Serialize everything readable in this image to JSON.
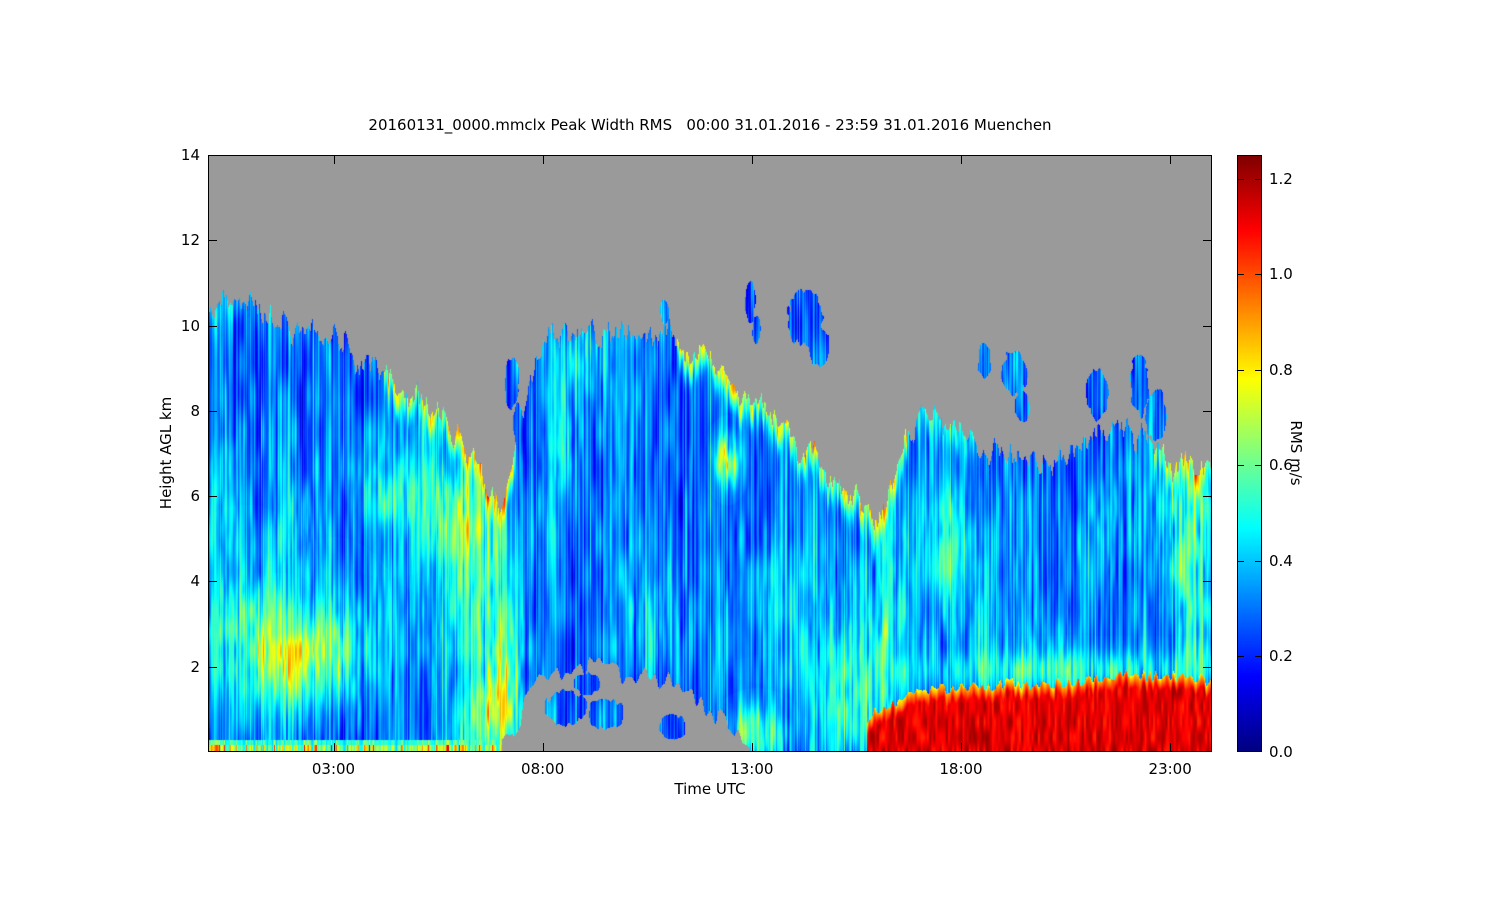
{
  "chart_data": {
    "type": "heatmap",
    "title": "20160131_0000.mmclx Peak Width RMS   00:00 31.01.2016 - 23:59 31.01.2016 Muenchen",
    "instrument_file": "20160131_0000.mmclx",
    "quantity": "Peak Width RMS",
    "station": "Muenchen",
    "date": "31.01.2016",
    "time_span": "00:00 - 23:59",
    "xlabel": "Time UTC",
    "ylabel": "Height AGL km",
    "x_tick_labels": [
      "03:00",
      "08:00",
      "13:00",
      "18:00",
      "23:00"
    ],
    "x_tick_hours": [
      3,
      8,
      13,
      18,
      23
    ],
    "x_range_hours": [
      0,
      24
    ],
    "y_ticks": [
      2,
      4,
      6,
      8,
      10,
      12,
      14
    ],
    "ylim": [
      0,
      14
    ],
    "colorbar": {
      "label": "RMS m/s",
      "ticks": [
        "0.0",
        "0.2",
        "0.4",
        "0.6",
        "0.8",
        "1.0",
        "1.2"
      ],
      "tick_values": [
        0,
        0.2,
        0.4,
        0.6,
        0.8,
        1.0,
        1.2
      ],
      "vmin": 0,
      "vmax": 1.25,
      "colormap": "jet",
      "colormap_stops_bottom_to_top": [
        "#000080",
        "#0000ff",
        "#0080ff",
        "#00ffff",
        "#80ff80",
        "#ffff00",
        "#ff8000",
        "#ff0000",
        "#800000"
      ]
    },
    "no_data_color": "#9a9a9a",
    "frame_color": "#000000",
    "description": "Time-height cross-section of Doppler peak-width RMS (turbulence) from a mmclx cloud radar over Muenchen. Cloud layers appear mostly blue (0.1-0.3 m/s) with cyan/green/yellow turbulent streaks, yellow-orange enhancement along descending cloud-top edges, gray where no signal, and a saturated dark-red (>1.2 m/s) boundary-layer band below ~1.8 km after ~16:00 UTC.",
    "render": {
      "estimated_from_image": true,
      "cloud_top_km": [
        10.4,
        10.4,
        9.9,
        9.7,
        9.0,
        8.4,
        7.6,
        5.6,
        9.8,
        10.0,
        9.7,
        9.6,
        9.2,
        8.1,
        7.3,
        6.4,
        5.5,
        8.0,
        7.5,
        7.0,
        6.9,
        7.4,
        7.6,
        6.9,
        6.8
      ],
      "cloud_base_km": [
        0,
        0,
        0,
        0,
        0,
        0,
        0,
        0,
        1.9,
        2.0,
        1.9,
        1.6,
        1.0,
        0,
        0,
        0,
        0,
        0,
        0,
        0,
        0,
        0,
        0,
        0,
        0
      ],
      "red_layer_top_km": [
        0,
        0,
        0,
        0,
        0,
        0,
        0,
        0,
        0,
        0,
        0,
        0,
        0,
        0,
        0,
        0,
        1.0,
        1.45,
        1.5,
        1.6,
        1.6,
        1.7,
        1.8,
        1.8,
        1.7
      ],
      "red_layer_start_hour": 15.75,
      "surface_hot_streak": {
        "t0": 0,
        "t1": 7.45,
        "max_height_km": 0.3
      },
      "features": [
        {
          "t": 0.9,
          "h": 2.9,
          "rt": 0.8,
          "rh": 1.1,
          "a": 0.28
        },
        {
          "t": 1.7,
          "h": 2.1,
          "rt": 0.5,
          "rh": 0.8,
          "a": 0.3
        },
        {
          "t": 3.0,
          "h": 2.4,
          "rt": 0.7,
          "rh": 1.0,
          "a": 0.32
        },
        {
          "t": 2.1,
          "h": 5.2,
          "rt": 0.5,
          "rh": 1.0,
          "a": 0.15
        },
        {
          "t": 0.4,
          "h": 6.0,
          "rt": 0.4,
          "rh": 1.5,
          "a": 0.12
        },
        {
          "t": 4.3,
          "h": 6.2,
          "rt": 0.7,
          "rh": 0.8,
          "a": 0.18
        },
        {
          "t": 5.2,
          "h": 3.0,
          "rt": 0.8,
          "rh": 1.5,
          "a": 0.12
        },
        {
          "t": 5.8,
          "h": 5.7,
          "rt": 0.8,
          "rh": 0.8,
          "a": 0.28
        },
        {
          "t": 6.4,
          "h": 4.2,
          "rt": 0.6,
          "rh": 1.4,
          "a": 0.22
        },
        {
          "t": 7.0,
          "h": 1.6,
          "rt": 0.35,
          "rh": 1.6,
          "a": 0.4
        },
        {
          "t": 6.6,
          "h": 0.7,
          "rt": 0.5,
          "rh": 0.7,
          "a": 0.3
        },
        {
          "t": 9.0,
          "h": 9.2,
          "rt": 0.6,
          "rh": 0.7,
          "a": 0.18
        },
        {
          "t": 8.4,
          "h": 7.2,
          "rt": 0.3,
          "rh": 1.0,
          "a": 0.18
        },
        {
          "t": 10.6,
          "h": 3.2,
          "rt": 0.8,
          "rh": 1.2,
          "a": 0.12
        },
        {
          "t": 12.4,
          "h": 6.85,
          "rt": 0.22,
          "rh": 0.4,
          "a": 0.55
        },
        {
          "t": 13.6,
          "h": 3.6,
          "rt": 0.9,
          "rh": 1.6,
          "a": 0.1
        },
        {
          "t": 14.9,
          "h": 2.6,
          "rt": 0.8,
          "rh": 1.4,
          "a": 0.15
        },
        {
          "t": 15.3,
          "h": 1.0,
          "rt": 0.5,
          "rh": 0.8,
          "a": 0.28
        },
        {
          "t": 13.1,
          "h": 0.45,
          "rt": 0.45,
          "rh": 0.4,
          "a": 0.38
        },
        {
          "t": 16.25,
          "h": 2.6,
          "rt": 0.35,
          "rh": 2.4,
          "a": 0.26
        },
        {
          "t": 17.6,
          "h": 5.0,
          "rt": 0.4,
          "rh": 0.9,
          "a": 0.22
        },
        {
          "t": 18.1,
          "h": 3.8,
          "rt": 0.6,
          "rh": 1.6,
          "a": 0.12
        },
        {
          "t": 20.1,
          "h": 2.6,
          "rt": 0.9,
          "rh": 1.1,
          "a": 0.12
        },
        {
          "t": 21.6,
          "h": 5.4,
          "rt": 0.5,
          "rh": 1.1,
          "a": 0.16
        },
        {
          "t": 23.3,
          "h": 5.6,
          "rt": 0.5,
          "rh": 1.6,
          "a": 0.3
        },
        {
          "t": 23.7,
          "h": 3.2,
          "rt": 0.35,
          "rh": 1.8,
          "a": 0.22
        },
        {
          "t": 20.8,
          "h": 1.95,
          "rt": 3.2,
          "rh": 0.3,
          "a": 0.22
        }
      ],
      "edge_glows": [
        {
          "t0": 4.2,
          "t1": 7.35,
          "a": 0.5
        },
        {
          "t0": 11.2,
          "t1": 16.7,
          "a": 0.55
        },
        {
          "t0": 16.9,
          "t1": 18.3,
          "a": 0.22
        },
        {
          "t0": 22.6,
          "t1": 24,
          "a": 0.38
        },
        {
          "t0": 0,
          "t1": 1.2,
          "a": 0.12
        }
      ],
      "patches": [
        {
          "t": 12.95,
          "h": 10.55,
          "rt": 0.12,
          "rh": 0.5
        },
        {
          "t": 13.1,
          "h": 9.9,
          "rt": 0.1,
          "rh": 0.35
        },
        {
          "t": 14.25,
          "h": 10.2,
          "rt": 0.4,
          "rh": 0.65
        },
        {
          "t": 14.6,
          "h": 9.5,
          "rt": 0.25,
          "rh": 0.45
        },
        {
          "t": 10.9,
          "h": 10.35,
          "rt": 0.1,
          "rh": 0.3
        },
        {
          "t": 18.55,
          "h": 9.2,
          "rt": 0.15,
          "rh": 0.45
        },
        {
          "t": 19.25,
          "h": 8.9,
          "rt": 0.3,
          "rh": 0.55
        },
        {
          "t": 19.45,
          "h": 8.1,
          "rt": 0.18,
          "rh": 0.35
        },
        {
          "t": 21.25,
          "h": 8.4,
          "rt": 0.25,
          "rh": 0.6
        },
        {
          "t": 22.25,
          "h": 8.6,
          "rt": 0.22,
          "rh": 0.7
        },
        {
          "t": 22.65,
          "h": 7.9,
          "rt": 0.25,
          "rh": 0.6
        },
        {
          "t": 8.55,
          "h": 1.05,
          "rt": 0.5,
          "rh": 0.4
        },
        {
          "t": 9.5,
          "h": 0.9,
          "rt": 0.45,
          "rh": 0.35
        },
        {
          "t": 9.05,
          "h": 1.6,
          "rt": 0.3,
          "rh": 0.25
        },
        {
          "t": 11.1,
          "h": 0.6,
          "rt": 0.3,
          "rh": 0.3
        },
        {
          "t": 7.25,
          "h": 8.7,
          "rt": 0.17,
          "rh": 0.6
        },
        {
          "t": 7.4,
          "h": 7.7,
          "rt": 0.12,
          "rh": 0.5
        }
      ]
    }
  }
}
